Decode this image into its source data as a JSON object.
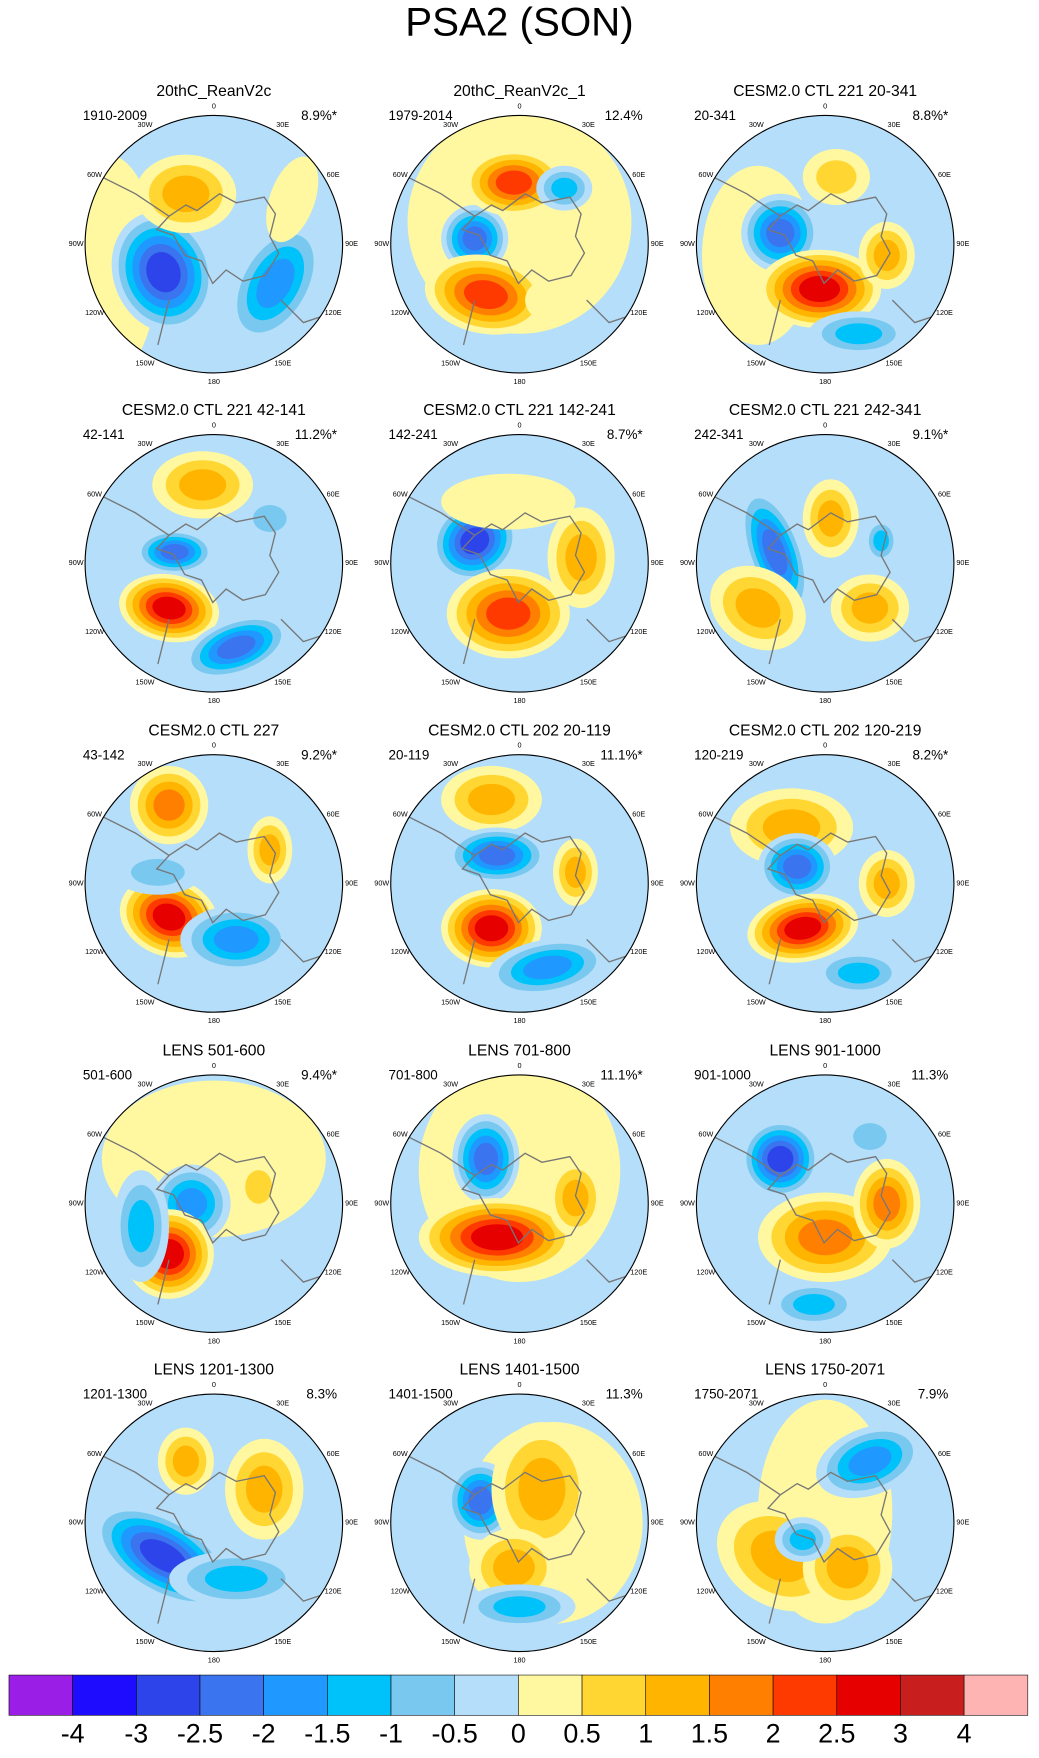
{
  "chart_data": {
    "type": "polar_contour",
    "title": "PSA2 (SON)",
    "panels": [
      {
        "title": "20thC_ReanV2c",
        "period": "1910-2009",
        "percent": "8.9%*"
      },
      {
        "title": "20thC_ReanV2c_1",
        "period": "1979-2014",
        "percent": "12.4%"
      },
      {
        "title": "CESM2.0 CTL 221 20-341",
        "period": "20-341",
        "percent": "8.8%*"
      },
      {
        "title": "CESM2.0 CTL 221 42-141",
        "period": "42-141",
        "percent": "11.2%*"
      },
      {
        "title": "CESM2.0 CTL 221 142-241",
        "period": "142-241",
        "percent": "8.7%*"
      },
      {
        "title": "CESM2.0 CTL 221 242-341",
        "period": "242-341",
        "percent": "9.1%*"
      },
      {
        "title": "CESM2.0 CTL 227",
        "period": "43-142",
        "percent": "9.2%*"
      },
      {
        "title": "CESM2.0 CTL 202 20-119",
        "period": "20-119",
        "percent": "11.1%*"
      },
      {
        "title": "CESM2.0 CTL 202 120-219",
        "period": "120-219",
        "percent": "8.2%*"
      },
      {
        "title": "LENS 501-600",
        "period": "501-600",
        "percent": "9.4%*"
      },
      {
        "title": "LENS 701-800",
        "period": "701-800",
        "percent": "11.1%*"
      },
      {
        "title": "LENS 901-1000",
        "period": "901-1000",
        "percent": "11.3%"
      },
      {
        "title": "LENS 1201-1300",
        "period": "1201-1300",
        "percent": "8.3%"
      },
      {
        "title": "LENS 1401-1500",
        "period": "1401-1500",
        "percent": "11.3%"
      },
      {
        "title": "LENS 1750-2071",
        "period": "1750-2071",
        "percent": "7.9%"
      }
    ],
    "longitudes": [
      "0",
      "30E",
      "60E",
      "90E",
      "120E",
      "150E",
      "180",
      "150W",
      "120W",
      "90W",
      "60W",
      "30W"
    ],
    "levels": [
      -4,
      -3,
      -2.5,
      -2,
      -1.5,
      -1,
      -0.5,
      0,
      0.5,
      1,
      1.5,
      2,
      2.5,
      3,
      4
    ],
    "colors": [
      "#9a1ee6",
      "#1e0cff",
      "#2d44ea",
      "#3a74ee",
      "#1f98ff",
      "#00c2fa",
      "#78c8f0",
      "#b4defa",
      "#fff8a0",
      "#ffd632",
      "#ffb400",
      "#ff8000",
      "#ff3a00",
      "#e60000",
      "#c81e1e",
      "#ffb4b4"
    ]
  }
}
